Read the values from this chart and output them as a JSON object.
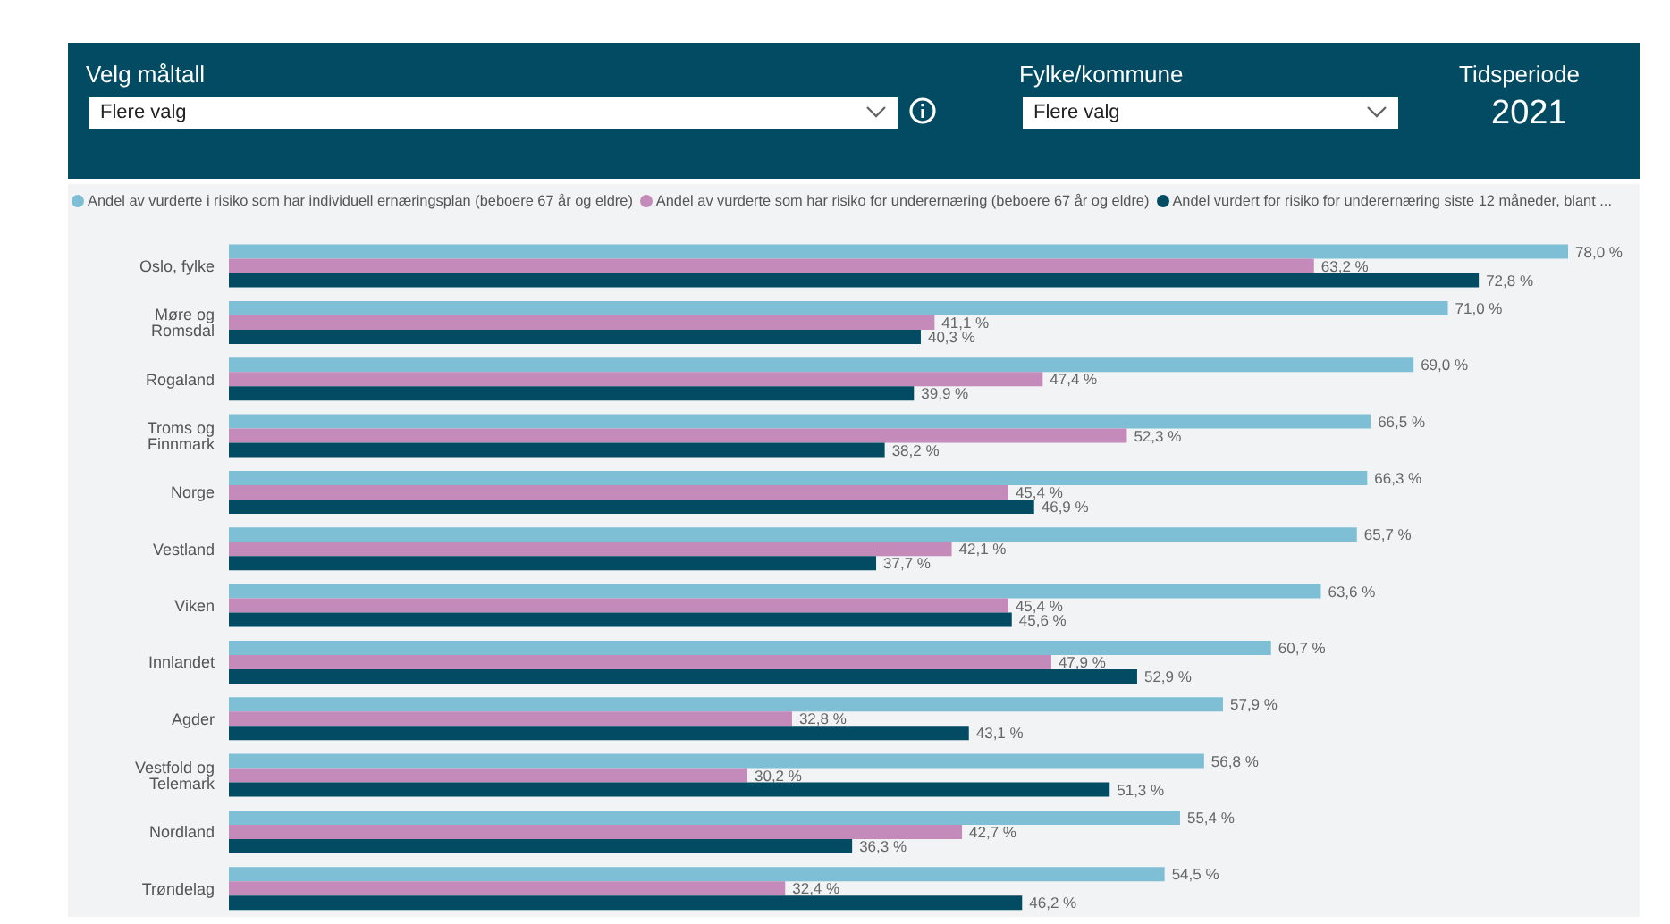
{
  "chart_data": {
    "type": "bar",
    "orientation": "horizontal",
    "annotations": [
      "Velg måltall",
      "Flere valg",
      "Fylke/kommune",
      "Flere valg",
      "Tidsperiode",
      "2021"
    ],
    "categories": [
      "Oslo, fylke",
      "Møre og Romsdal",
      "Rogaland",
      "Troms og Finnmark",
      "Norge",
      "Vestland",
      "Viken",
      "Innlandet",
      "Agder",
      "Vestfold og Telemark",
      "Nordland",
      "Trøndelag"
    ],
    "series": [
      {
        "name": "Andel av vurderte i risiko som har individuell ernæringsplan (beboere 67 år og eldre)",
        "color": "#7fbfd6",
        "values": [
          78.0,
          71.0,
          69.0,
          66.5,
          66.3,
          65.7,
          63.6,
          60.7,
          57.9,
          56.8,
          55.4,
          54.5
        ],
        "value_labels": [
          "78,0 %",
          "71,0 %",
          "69,0 %",
          "66,5 %",
          "66,3 %",
          "65,7 %",
          "63,6 %",
          "60,7 %",
          "57,9 %",
          "56,8 %",
          "55,4 %",
          "54,5 %"
        ]
      },
      {
        "name": "Andel av vurderte som har risiko for underernæring (beboere 67 år og eldre)",
        "color": "#c48ab9",
        "values": [
          63.2,
          41.1,
          47.4,
          52.3,
          45.4,
          42.1,
          45.4,
          47.9,
          32.8,
          30.2,
          42.7,
          32.4
        ],
        "value_labels": [
          "63,2 %",
          "41,1 %",
          "47,4 %",
          "52,3 %",
          "45,4 %",
          "42,1 %",
          "45,4 %",
          "47,9 %",
          "32,8 %",
          "30,2 %",
          "42,7 %",
          "32,4 %"
        ]
      },
      {
        "name": "Andel vurdert for risiko for underernæring siste 12 måneder, blant ...",
        "color": "#034b62",
        "values": [
          72.8,
          40.3,
          39.9,
          38.2,
          46.9,
          37.7,
          45.6,
          52.9,
          43.1,
          51.3,
          36.3,
          46.2
        ],
        "value_labels": [
          "72,8 %",
          "40,3 %",
          "39,9 %",
          "38,2 %",
          "46,9 %",
          "37,7 %",
          "45,6 %",
          "52,9 %",
          "43,1 %",
          "51,3 %",
          "36,3 %",
          "46,2 %"
        ]
      }
    ],
    "legend": "top left",
    "grid": false
  }
}
